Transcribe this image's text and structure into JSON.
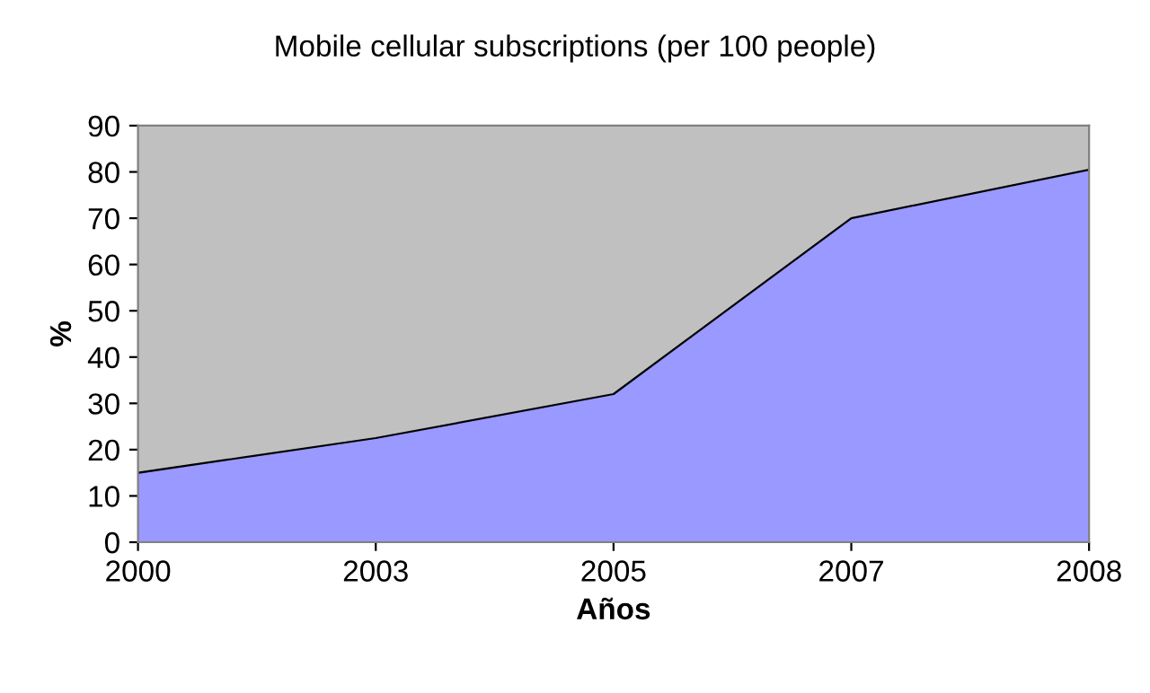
{
  "chart_data": {
    "type": "area",
    "title": "Mobile cellular subscriptions (per 100 people)",
    "xlabel": "Años",
    "ylabel": "%",
    "categories": [
      "2000",
      "2003",
      "2005",
      "2007",
      "2008"
    ],
    "series": [
      {
        "color": "#9999ff",
        "values": [
          15,
          22.5,
          32,
          70,
          80.5
        ]
      }
    ],
    "ylim": [
      0,
      90
    ],
    "yticks": [
      0,
      10,
      20,
      30,
      40,
      50,
      60,
      70,
      80,
      90
    ],
    "grid": false,
    "legend": false
  }
}
